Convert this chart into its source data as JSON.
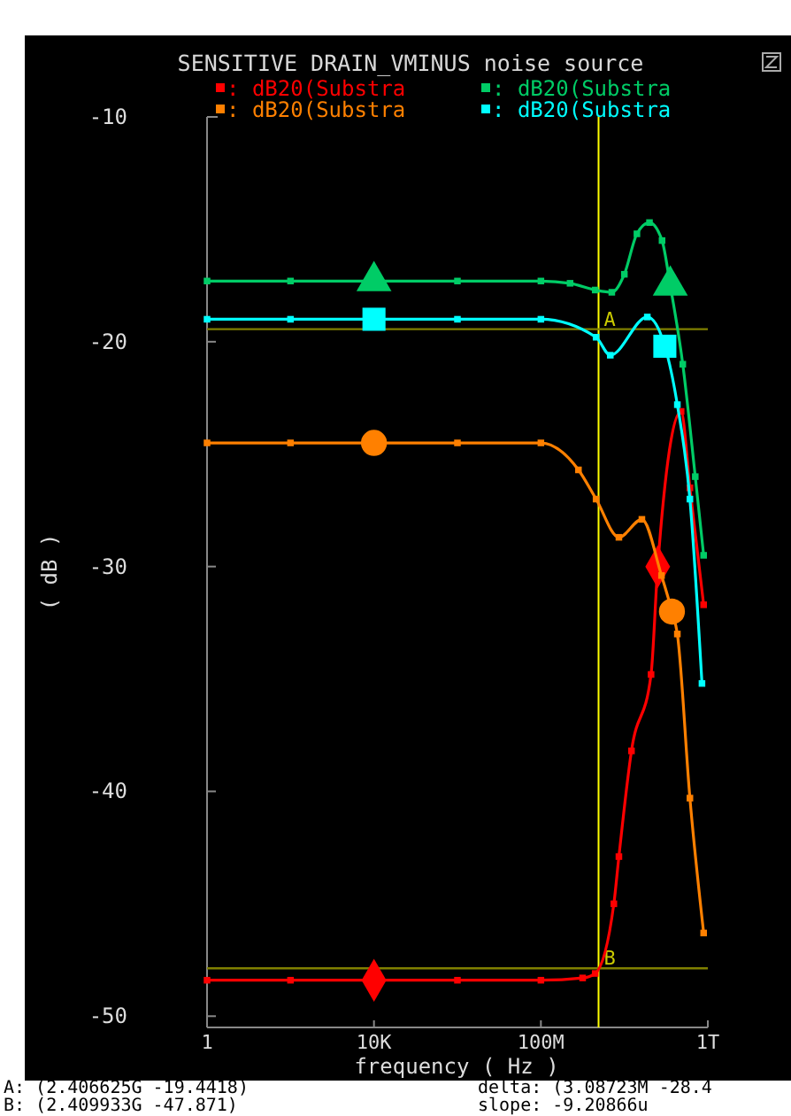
{
  "chart_data": {
    "type": "line",
    "title": "SENSITIVE DRAIN_VMINUS noise source",
    "xlabel": "frequency ( Hz )",
    "ylabel": "( dB )",
    "log": "x",
    "xlim": [
      1,
      1000000000000
    ],
    "xticks": [
      {
        "value": 1,
        "label": "1"
      },
      {
        "value": 10000,
        "label": "10K"
      },
      {
        "value": 100000000,
        "label": "100M"
      },
      {
        "value": 1000000000000,
        "label": "1T"
      }
    ],
    "ylim": [
      -50.5,
      -10
    ],
    "yticks": [
      -10,
      -20,
      -30,
      -40,
      -50
    ],
    "grid": false,
    "legend": "top",
    "line_style": "solid",
    "marker": "square",
    "series": [
      {
        "name": ": dB20(Substra",
        "color": "#ff0000",
        "x": [
          1,
          100,
          10000,
          1000000,
          100000000,
          1000000000,
          2000000000,
          5600000000,
          7400000000,
          14800000000,
          43600000000,
          63000000000,
          229000000000,
          372000000000,
          794000000000
        ],
        "values": [
          -48.4,
          -48.4,
          -48.4,
          -48.4,
          -48.4,
          -48.3,
          -48.1,
          -45,
          -42.9,
          -38.2,
          -34.8,
          -30,
          -23.1,
          -26.5,
          -31.7
        ]
      },
      {
        "name": ": dB20(Substra",
        "color": "#00cc66",
        "x": [
          1,
          100,
          10000,
          1000000,
          100000000,
          500000000,
          2000000000,
          5000000000,
          10000000000,
          20000000000,
          40000000000,
          80000000000,
          126000000000,
          251000000000,
          500000000000,
          794000000000
        ],
        "values": [
          -17.3,
          -17.3,
          -17.3,
          -17.3,
          -17.3,
          -17.4,
          -17.7,
          -17.8,
          -17,
          -15.2,
          -14.7,
          -15.5,
          -17.5,
          -21,
          -26,
          -29.5
        ]
      },
      {
        "name": ": dB20(Substra",
        "color": "#ff8000",
        "x": [
          1,
          100,
          10000,
          1000000,
          100000000,
          794000000,
          2100000000,
          7400000000,
          26300000000,
          77600000000,
          138000000000,
          186000000000,
          372000000000,
          794000000000
        ],
        "values": [
          -24.5,
          -24.5,
          -24.5,
          -24.5,
          -24.5,
          -25.7,
          -27,
          -28.7,
          -27.9,
          -30.4,
          -32,
          -33,
          -40.3,
          -46.3
        ]
      },
      {
        "name": ": dB20(Substra",
        "color": "#00ffff",
        "x": [
          1,
          100,
          10000,
          1000000,
          100000000,
          2100000000,
          4600000000,
          35500000000,
          93300000000,
          186000000000,
          372000000000,
          724000000000
        ],
        "values": [
          -19,
          -19,
          -19,
          -19,
          -19,
          -19.8,
          -20.6,
          -18.9,
          -20.2,
          -22.8,
          -27,
          -35.2
        ]
      }
    ],
    "ref_lines": [
      {
        "axis": "x",
        "value": 2406625000,
        "color": "#ffff00"
      },
      {
        "axis": "y",
        "value": -19.4418,
        "label": "A",
        "color": "#808000"
      },
      {
        "axis": "y",
        "value": -47.871,
        "label": "B",
        "color": "#808000"
      }
    ],
    "annotations": [
      "A: (2.406625G -19.4418)",
      "B: (2.409933G -47.871)",
      "delta: (3.08723M -28.4",
      "slope: -9.20866u"
    ]
  }
}
